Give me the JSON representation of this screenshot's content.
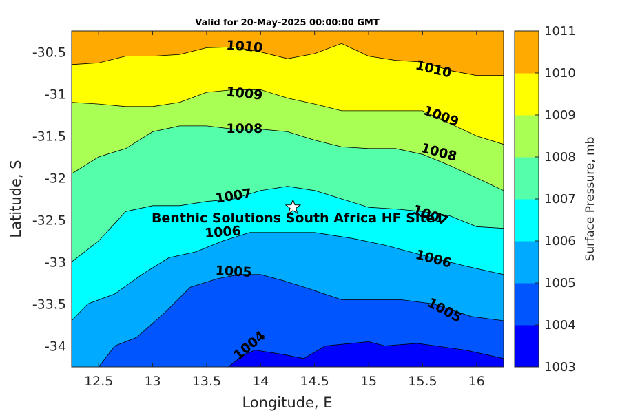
{
  "chart_data": {
    "type": "heatmap",
    "subtype": "filled-contour",
    "title": "Valid for 20-May-2025 00:00:00 GMT",
    "xlabel": "Longitude, E",
    "ylabel": "Latitude, S",
    "xlim": [
      12.25,
      16.25
    ],
    "ylim": [
      -34.25,
      -30.25
    ],
    "xticks": [
      12.5,
      13,
      13.5,
      14,
      14.5,
      15,
      15.5,
      16
    ],
    "xtick_labels": [
      "12.5",
      "13",
      "13.5",
      "14",
      "14.5",
      "15",
      "15.5",
      "16"
    ],
    "yticks": [
      -30.5,
      -31,
      -31.5,
      -32,
      -32.5,
      -33,
      -33.5,
      -34
    ],
    "ytick_labels": [
      "-30.5",
      "-31",
      "-31.5",
      "-32",
      "-32.5",
      "-33",
      "-33.5",
      "-34"
    ],
    "colorbar": {
      "label": "Surface Pressure, mb",
      "levels": [
        1003,
        1004,
        1005,
        1006,
        1007,
        1008,
        1009,
        1010,
        1011
      ],
      "tick_labels": [
        "1003",
        "1004",
        "1005",
        "1006",
        "1007",
        "1008",
        "1009",
        "1010",
        "1011"
      ],
      "colors": [
        "#0000ff",
        "#0055ff",
        "#00aaff",
        "#00ffff",
        "#55ffaa",
        "#aaff55",
        "#ffff00",
        "#ffaa00",
        "#ff5500"
      ]
    },
    "contours": [
      {
        "level": 1004,
        "label": "1004",
        "x": [
          14.4,
          14.6,
          15.0,
          15.15,
          15.45,
          15.9,
          16.25
        ],
        "y": [
          -34.15,
          -34.0,
          -33.95,
          -34.0,
          -33.97,
          -34.05,
          -34.15
        ]
      },
      {
        "level": 1004,
        "label": "1004",
        "x": [
          13.7,
          13.85,
          13.95,
          14.2,
          14.4
        ],
        "y": [
          -34.25,
          -34.1,
          -34.05,
          -34.1,
          -34.15
        ]
      },
      {
        "level": 1005,
        "label": "1005",
        "x": [
          12.5,
          12.65,
          12.85,
          13.1,
          13.35,
          13.6,
          13.8,
          14.0,
          14.2,
          14.45,
          14.75,
          15.05,
          15.3,
          15.6,
          15.95,
          16.25
        ],
        "y": [
          -34.25,
          -34.0,
          -33.9,
          -33.62,
          -33.3,
          -33.2,
          -33.15,
          -33.15,
          -33.22,
          -33.32,
          -33.45,
          -33.45,
          -33.45,
          -33.5,
          -33.65,
          -33.7
        ]
      },
      {
        "level": 1006,
        "label": "1006",
        "x": [
          12.25,
          12.4,
          12.65,
          12.9,
          13.15,
          13.4,
          13.65,
          13.9,
          14.15,
          14.5,
          14.85,
          15.15,
          15.5,
          15.9,
          16.25
        ],
        "y": [
          -33.7,
          -33.5,
          -33.38,
          -33.15,
          -32.95,
          -32.88,
          -32.75,
          -32.65,
          -32.65,
          -32.65,
          -32.72,
          -32.8,
          -32.92,
          -33.05,
          -33.15
        ]
      },
      {
        "level": 1007,
        "label": "1007",
        "x": [
          12.25,
          12.5,
          12.75,
          13.0,
          13.25,
          13.5,
          13.75,
          14.0,
          14.25,
          14.5,
          14.75,
          15.0,
          15.25,
          15.5,
          15.75,
          16.0,
          16.25
        ],
        "y": [
          -33.0,
          -32.75,
          -32.4,
          -32.33,
          -32.33,
          -32.28,
          -32.25,
          -32.15,
          -32.1,
          -32.15,
          -32.25,
          -32.35,
          -32.37,
          -32.4,
          -32.45,
          -32.58,
          -32.6
        ]
      },
      {
        "level": 1008,
        "label": "1008",
        "x": [
          12.25,
          12.5,
          12.75,
          13.0,
          13.25,
          13.5,
          13.75,
          14.0,
          14.25,
          14.5,
          14.75,
          15.0,
          15.25,
          15.5,
          15.75,
          16.0,
          16.25
        ],
        "y": [
          -31.95,
          -31.75,
          -31.65,
          -31.45,
          -31.38,
          -31.38,
          -31.42,
          -31.42,
          -31.45,
          -31.55,
          -31.63,
          -31.65,
          -31.65,
          -31.72,
          -31.85,
          -32.0,
          -32.15
        ]
      },
      {
        "level": 1009,
        "label": "1009",
        "x": [
          12.25,
          12.5,
          12.75,
          13.0,
          13.25,
          13.5,
          13.75,
          14.0,
          14.25,
          14.5,
          14.75,
          15.0,
          15.25,
          15.5,
          15.75,
          16.0,
          16.25
        ],
        "y": [
          -31.1,
          -31.12,
          -31.15,
          -31.15,
          -31.1,
          -30.98,
          -30.95,
          -30.95,
          -31.05,
          -31.12,
          -31.2,
          -31.2,
          -31.2,
          -31.2,
          -31.35,
          -31.5,
          -31.6
        ]
      },
      {
        "level": 1010,
        "label": "1010",
        "x": [
          12.25,
          12.5,
          12.75,
          13.0,
          13.25,
          13.5,
          13.75,
          14.0,
          14.25,
          14.5,
          14.75,
          15.0,
          15.25,
          15.5,
          15.75,
          16.0,
          16.25
        ],
        "y": [
          -30.65,
          -30.63,
          -30.55,
          -30.55,
          -30.53,
          -30.45,
          -30.44,
          -30.5,
          -30.58,
          -30.52,
          -30.4,
          -30.55,
          -30.6,
          -30.62,
          -30.72,
          -30.78,
          -30.78
        ]
      }
    ],
    "contour_labels": [
      {
        "text": "1010",
        "x": 13.85,
        "y": -30.44,
        "angle": 4
      },
      {
        "text": "1010",
        "x": 15.6,
        "y": -30.71,
        "angle": 14
      },
      {
        "text": "1009",
        "x": 13.85,
        "y": -31.0,
        "angle": 6
      },
      {
        "text": "1009",
        "x": 15.67,
        "y": -31.27,
        "angle": 20
      },
      {
        "text": "1008",
        "x": 13.85,
        "y": -31.42,
        "angle": 0
      },
      {
        "text": "1008",
        "x": 15.65,
        "y": -31.7,
        "angle": 15
      },
      {
        "text": "1007",
        "x": 13.75,
        "y": -32.22,
        "angle": -9
      },
      {
        "text": "1007",
        "x": 15.57,
        "y": -32.45,
        "angle": 20
      },
      {
        "text": "1006",
        "x": 13.65,
        "y": -32.65,
        "angle": -4
      },
      {
        "text": "1006",
        "x": 15.6,
        "y": -32.97,
        "angle": 15
      },
      {
        "text": "1005",
        "x": 13.75,
        "y": -33.12,
        "angle": 3
      },
      {
        "text": "1005",
        "x": 15.7,
        "y": -33.58,
        "angle": 28
      },
      {
        "text": "1004",
        "x": 13.9,
        "y": -34.0,
        "angle": -40
      }
    ],
    "site": {
      "name": "Benthic Solutions South Africa HF Site1",
      "lon": 14.3,
      "lat": -32.35
    }
  }
}
